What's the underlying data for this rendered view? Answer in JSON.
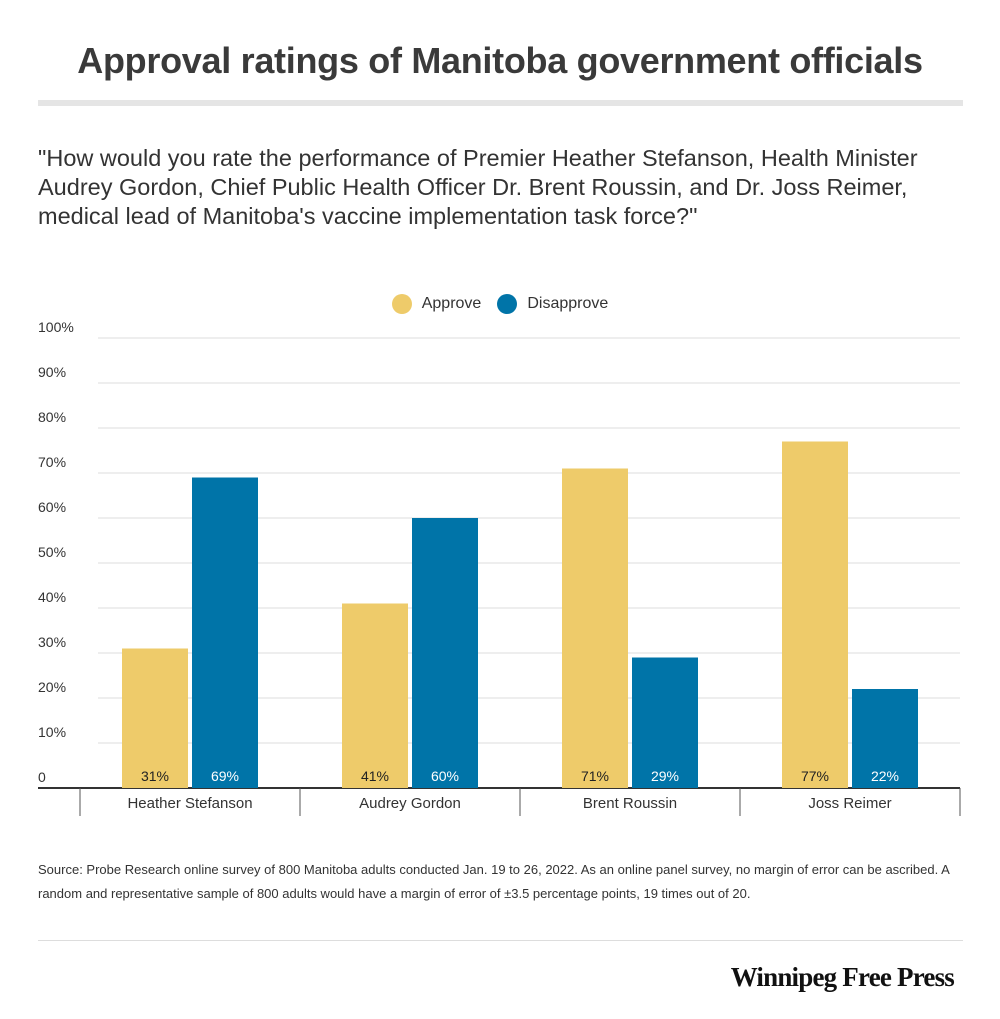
{
  "header": {
    "title": "Approval ratings of Manitoba government officials",
    "subtitle": "\"How would you rate the performance of Premier Heather Stefanson,  Health Minister Audrey Gordon, Chief Public Health Officer Dr. Brent Roussin, and Dr. Joss Reimer, medical lead of Manitoba's vaccine implementation task force?\""
  },
  "footer": {
    "source": "Source: Probe Research online survey of 800 Manitoba adults conducted Jan. 19 to 26, 2022. As an online panel survey, no margin of error can be ascribed. A random and representative sample of 800 adults would have a margin of error of ±3.5 percentage points, 19 times out of 20.",
    "brand": "Winnipeg Free Press"
  },
  "chart_data": {
    "type": "bar",
    "title": "Approval ratings of Manitoba government officials",
    "categories": [
      "Heather Stefanson",
      "Audrey Gordon",
      "Brent Roussin",
      "Joss Reimer"
    ],
    "series": [
      {
        "name": "Approve",
        "color": "#eecb6a",
        "values": [
          31,
          41,
          71,
          77
        ],
        "labels": [
          "31%",
          "41%",
          "71%",
          "77%"
        ],
        "label_color": "#222222"
      },
      {
        "name": "Disapprove",
        "color": "#0074a8",
        "values": [
          69,
          60,
          29,
          22
        ],
        "labels": [
          "69%",
          "60%",
          "29%",
          "22%"
        ],
        "label_color": "#ffffff"
      }
    ],
    "ylim": [
      0,
      100
    ],
    "yticks": [
      {
        "value": 0,
        "label": "0"
      },
      {
        "value": 10,
        "label": "10%"
      },
      {
        "value": 20,
        "label": "20%"
      },
      {
        "value": 30,
        "label": "30%"
      },
      {
        "value": 40,
        "label": "40%"
      },
      {
        "value": 50,
        "label": "50%"
      },
      {
        "value": 60,
        "label": "60%"
      },
      {
        "value": 70,
        "label": "70%"
      },
      {
        "value": 80,
        "label": "80%"
      },
      {
        "value": 90,
        "label": "90%"
      },
      {
        "value": 100,
        "label": "100%"
      }
    ],
    "grid": true,
    "legend": "top-center",
    "xlabel": "",
    "ylabel": ""
  }
}
